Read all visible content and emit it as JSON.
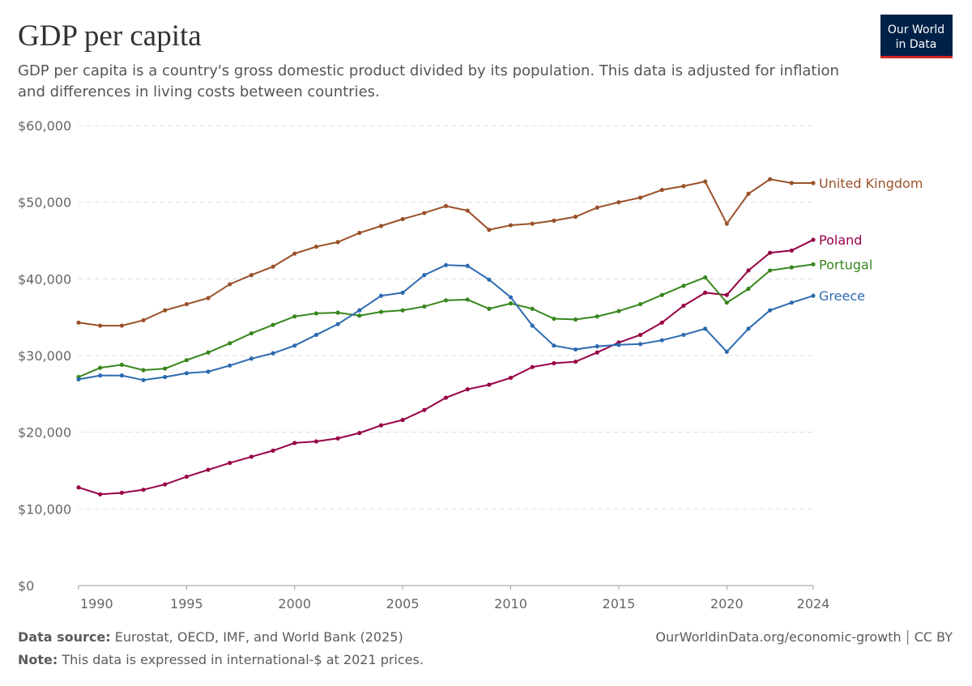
{
  "chart_data": {
    "type": "line",
    "title": "GDP per capita",
    "subtitle": [
      "GDP per capita is a country's gross domestic product divided by its population. This data is adjusted for inflation",
      "and differences in living costs between countries."
    ],
    "x": [
      1990,
      1991,
      1992,
      1993,
      1994,
      1995,
      1996,
      1997,
      1998,
      1999,
      2000,
      2001,
      2002,
      2003,
      2004,
      2005,
      2006,
      2007,
      2008,
      2009,
      2010,
      2011,
      2012,
      2013,
      2014,
      2015,
      2016,
      2017,
      2018,
      2019,
      2020,
      2021,
      2022,
      2023,
      2024
    ],
    "xlim": [
      1990,
      2024
    ],
    "xticks": [
      1990,
      1995,
      2000,
      2005,
      2010,
      2015,
      2020,
      2024
    ],
    "ylim": [
      0,
      60000
    ],
    "yticks": [
      {
        "value": 0,
        "label": "$0"
      },
      {
        "value": 10000,
        "label": "$10,000"
      },
      {
        "value": 20000,
        "label": "$20,000"
      },
      {
        "value": 30000,
        "label": "$30,000"
      },
      {
        "value": 40000,
        "label": "$40,000"
      },
      {
        "value": 50000,
        "label": "$50,000"
      },
      {
        "value": 60000,
        "label": "$60,000"
      }
    ],
    "grid": true,
    "series": [
      {
        "name": "United Kingdom",
        "color": "#9a5129",
        "values": [
          34300,
          33900,
          33900,
          34600,
          35900,
          36700,
          37500,
          39300,
          40500,
          41600,
          43300,
          44200,
          44800,
          46000,
          46900,
          47800,
          48600,
          49500,
          48900,
          46400,
          47000,
          47200,
          47600,
          48100,
          49300,
          50000,
          50600,
          51600,
          52100,
          52700,
          47200,
          51100,
          53000,
          52500,
          52500
        ]
      },
      {
        "name": "Poland",
        "color": "#970046",
        "values": [
          12800,
          11900,
          12100,
          12500,
          13200,
          14200,
          15100,
          16000,
          16800,
          17600,
          18600,
          18800,
          19200,
          19900,
          20900,
          21600,
          22900,
          24500,
          25600,
          26200,
          27100,
          28500,
          29000,
          29200,
          30400,
          31700,
          32700,
          34300,
          36500,
          38200,
          37900,
          41100,
          43400,
          43700,
          45100
        ]
      },
      {
        "name": "Portugal",
        "color": "#38861d",
        "values": [
          27200,
          28400,
          28800,
          28100,
          28300,
          29400,
          30400,
          31600,
          32900,
          34000,
          35100,
          35500,
          35600,
          35200,
          35700,
          35900,
          36400,
          37200,
          37300,
          36100,
          36800,
          36100,
          34800,
          34700,
          35100,
          35800,
          36700,
          37900,
          39100,
          40200,
          36900,
          38700,
          41100,
          41500,
          41900
        ]
      },
      {
        "name": "Greece",
        "color": "#2c6bb0",
        "values": [
          26900,
          27400,
          27400,
          26800,
          27200,
          27700,
          27900,
          28700,
          29600,
          30300,
          31300,
          32700,
          34100,
          35900,
          37800,
          38200,
          40500,
          41800,
          41700,
          39900,
          37600,
          33900,
          31300,
          30800,
          31200,
          31400,
          31500,
          32000,
          32700,
          33500,
          30500,
          33500,
          35900,
          36900,
          37800
        ]
      }
    ]
  },
  "logo": {
    "lines": [
      "Our World",
      "in Data"
    ]
  },
  "footer": {
    "source_label": "Data source:",
    "source": "Eurostat, OECD, IMF, and World Bank (2025)",
    "note_label": "Note:",
    "note": "This data is expressed in international-$ at 2021 prices.",
    "url": "OurWorldinData.org/economic-growth",
    "license": "CC BY"
  }
}
